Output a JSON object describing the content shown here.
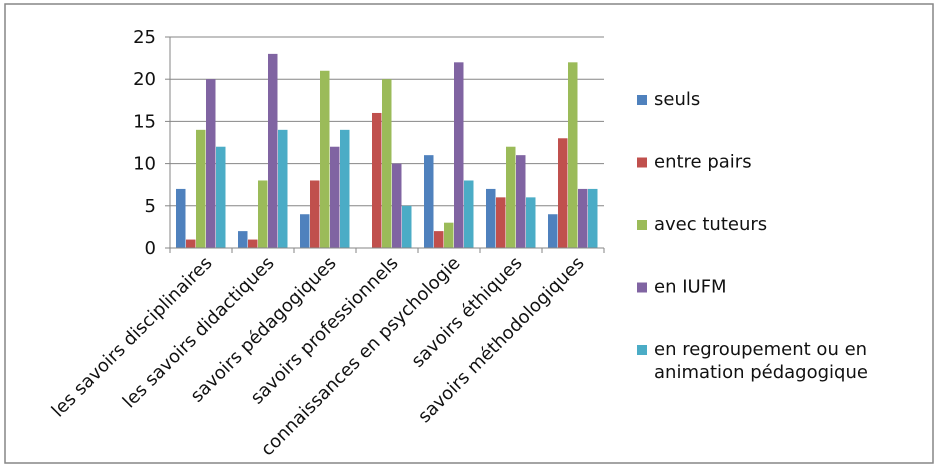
{
  "chart_data": {
    "type": "bar",
    "title": "",
    "xlabel": "",
    "ylabel": "",
    "ylim": [
      0,
      25
    ],
    "yticks": [
      0,
      5,
      10,
      15,
      20,
      25
    ],
    "grid": "horizontal major gridlines",
    "legend_position": "right",
    "categories": [
      "les savoirs disciplinaires",
      "les savoirs didactiques",
      "savoirs pédagogiques",
      "savoirs professionnels",
      "connaissances en psychologie",
      "savoirs éthiques",
      "savoirs méthodologiques"
    ],
    "series": [
      {
        "name": "seuls",
        "color": "#4F81BD",
        "values": [
          7,
          2,
          4,
          0,
          11,
          7,
          4
        ]
      },
      {
        "name": "entre pairs",
        "color": "#C0504D",
        "values": [
          1,
          1,
          8,
          16,
          2,
          6,
          13
        ]
      },
      {
        "name": "avec tuteurs",
        "color": "#9BBB59",
        "values": [
          14,
          8,
          21,
          20,
          3,
          12,
          22
        ]
      },
      {
        "name": "en IUFM",
        "color": "#8064A2",
        "values": [
          20,
          23,
          12,
          10,
          22,
          11,
          7
        ]
      },
      {
        "name": "en regroupement ou en animation pédagogique",
        "color": "#4BACC6",
        "values": [
          12,
          14,
          14,
          5,
          8,
          6,
          7
        ]
      }
    ],
    "legend": [
      {
        "lines": [
          "seuls"
        ]
      },
      {
        "lines": [
          "entre pairs"
        ]
      },
      {
        "lines": [
          "avec tuteurs"
        ]
      },
      {
        "lines": [
          "en IUFM"
        ]
      },
      {
        "lines": [
          "en regroupement ou en",
          "animation pédagogique"
        ]
      }
    ]
  }
}
